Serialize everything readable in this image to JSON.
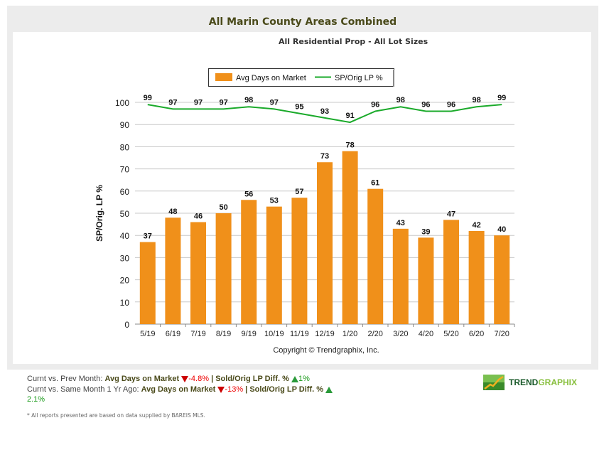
{
  "header": {
    "title": "All Marin County Areas Combined",
    "subtitle": "All Residential Prop - All Lot Sizes"
  },
  "chart_data": {
    "type": "bar",
    "categories": [
      "5/19",
      "6/19",
      "7/19",
      "8/19",
      "9/19",
      "10/19",
      "11/19",
      "12/19",
      "1/20",
      "2/20",
      "3/20",
      "4/20",
      "5/20",
      "6/20",
      "7/20"
    ],
    "series": [
      {
        "name": "Avg Days on Market",
        "type": "bar",
        "color": "#f0901a",
        "values": [
          37,
          48,
          46,
          50,
          56,
          53,
          57,
          73,
          78,
          61,
          43,
          39,
          47,
          42,
          40
        ]
      },
      {
        "name": "SP/Orig LP %",
        "type": "line",
        "color": "#1aaa2a",
        "values": [
          99,
          97,
          97,
          97,
          98,
          97,
          95,
          93,
          91,
          96,
          98,
          96,
          96,
          98,
          99
        ]
      }
    ],
    "ylabel": "SP/Orig. LP %",
    "ylim": [
      0,
      100
    ],
    "yticks": [
      0,
      10,
      20,
      30,
      40,
      50,
      60,
      70,
      80,
      90,
      100
    ],
    "grid": true,
    "legend": "top-center",
    "copyright": "Copyright © Trendgraphix, Inc."
  },
  "footer": {
    "row1_label": "Curnt vs. Prev Month:",
    "row2_label": "Curnt vs. Same Month 1 Yr Ago:",
    "dom_label": "Avg Days on Market",
    "sp_label": "Sold/Orig LP Diff. %",
    "sep": "|",
    "row1_dom": "-4.8%",
    "row1_sp": "1%",
    "row2_dom": "-13%",
    "row2_sp": "2.1%",
    "note": "* All reports presented are based on data supplied by BAREIS MLS."
  },
  "logo": {
    "part1": "TREND",
    "part2": "GRAPHIX"
  }
}
